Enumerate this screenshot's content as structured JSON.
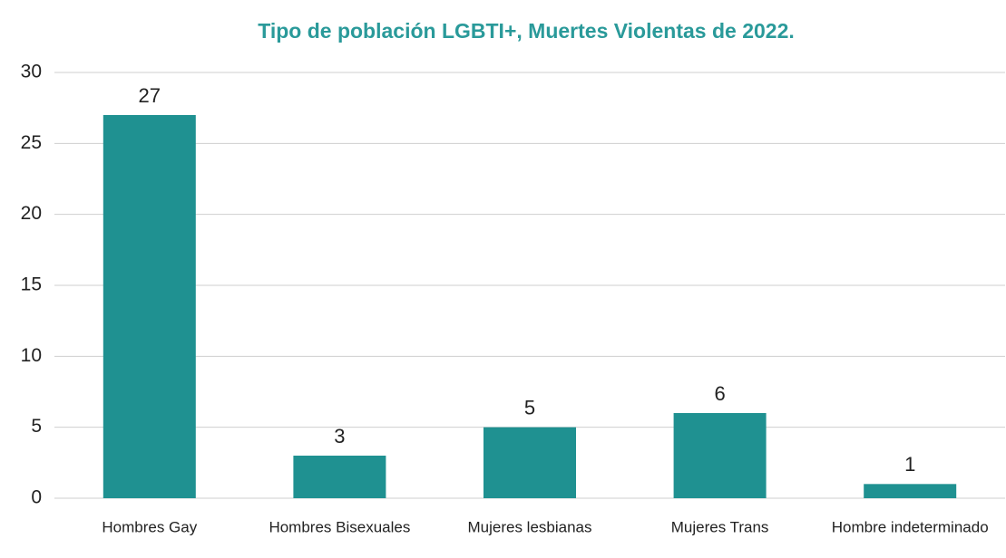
{
  "chart_data": {
    "type": "bar",
    "title": "Tipo de población LGBTI+, Muertes Violentas de 2022.",
    "categories": [
      "Hombres Gay",
      "Hombres Bisexuales",
      "Mujeres lesbianas",
      "Mujeres Trans",
      "Hombre indeterminado"
    ],
    "values": [
      27,
      3,
      5,
      6,
      1
    ],
    "color": "#1f9191",
    "ylim": [
      0,
      30
    ],
    "yticks": [
      0,
      5,
      10,
      15,
      20,
      25,
      30
    ],
    "grid": true
  }
}
